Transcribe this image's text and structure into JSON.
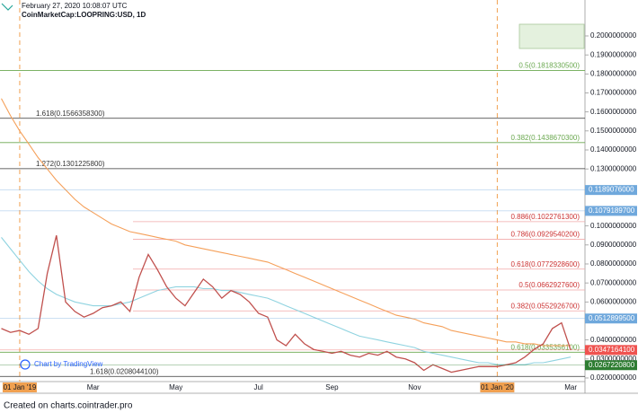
{
  "header": {
    "date": "February 27, 2020 10:08:07 UTC",
    "symbol": "CoinMarketCap:LOOPRING:USD, 1D"
  },
  "chart_data": {
    "type": "line",
    "categories": [
      null,
      null,
      "01 Jan '19",
      null,
      null,
      null,
      null,
      null,
      null,
      null,
      "Mar",
      null,
      null,
      null,
      null,
      null,
      null,
      null,
      null,
      "May",
      null,
      null,
      null,
      null,
      null,
      null,
      null,
      null,
      "Jul",
      null,
      null,
      null,
      null,
      null,
      null,
      null,
      "Sep",
      null,
      null,
      null,
      null,
      null,
      null,
      null,
      null,
      "Nov",
      null,
      null,
      null,
      null,
      null,
      null,
      null,
      null,
      "01 Jan '20",
      null,
      null,
      null,
      null,
      null,
      null,
      null,
      "Mar"
    ],
    "series": [
      {
        "color": "#c0504d",
        "values": [
          0.046,
          0.044,
          0.045,
          0.043,
          0.046,
          0.075,
          0.095,
          0.06,
          0.055,
          0.052,
          0.054,
          0.057,
          0.058,
          0.06,
          0.055,
          0.073,
          0.085,
          0.077,
          0.068,
          0.062,
          0.058,
          0.065,
          0.072,
          0.068,
          0.062,
          0.066,
          0.064,
          0.06,
          0.054,
          0.052,
          0.04,
          0.037,
          0.043,
          0.038,
          0.035,
          0.034,
          0.033,
          0.034,
          0.032,
          0.031,
          0.033,
          0.032,
          0.034,
          0.031,
          0.03,
          0.028,
          0.024,
          0.027,
          0.025,
          0.023,
          0.024,
          0.025,
          0.026,
          0.026,
          0.026,
          0.027,
          0.028,
          0.031,
          0.035,
          0.038,
          0.046,
          0.049,
          0.0347
        ]
      },
      {
        "color": "#f5a05a",
        "values": [
          0.167,
          0.158,
          0.15,
          0.143,
          0.136,
          0.13,
          0.124,
          0.119,
          0.114,
          0.11,
          0.107,
          0.104,
          0.101,
          0.099,
          0.097,
          0.096,
          0.095,
          0.094,
          0.093,
          0.092,
          0.09,
          0.089,
          0.088,
          0.087,
          0.086,
          0.085,
          0.084,
          0.083,
          0.082,
          0.081,
          0.079,
          0.077,
          0.075,
          0.073,
          0.071,
          0.069,
          0.067,
          0.065,
          0.063,
          0.061,
          0.059,
          0.057,
          0.055,
          0.053,
          0.052,
          0.051,
          0.049,
          0.048,
          0.047,
          0.045,
          0.044,
          0.043,
          0.042,
          0.041,
          0.04,
          0.039,
          0.039,
          0.038,
          0.038,
          0.037,
          0.037,
          0.037,
          0.037
        ]
      },
      {
        "color": "#8fd3e0",
        "values": [
          0.094,
          0.088,
          0.082,
          0.076,
          0.071,
          0.067,
          0.064,
          0.062,
          0.06,
          0.059,
          0.058,
          0.058,
          0.058,
          0.059,
          0.06,
          0.062,
          0.064,
          0.066,
          0.067,
          0.068,
          0.068,
          0.068,
          0.067,
          0.067,
          0.066,
          0.066,
          0.065,
          0.064,
          0.063,
          0.062,
          0.06,
          0.058,
          0.056,
          0.054,
          0.052,
          0.05,
          0.048,
          0.046,
          0.044,
          0.042,
          0.041,
          0.04,
          0.039,
          0.038,
          0.037,
          0.036,
          0.034,
          0.033,
          0.032,
          0.031,
          0.03,
          0.029,
          0.028,
          0.028,
          0.027,
          0.027,
          0.027,
          0.027,
          0.028,
          0.028,
          0.029,
          0.03,
          0.031
        ]
      }
    ],
    "ylim": [
      0.0181,
      0.2189
    ],
    "yticks": [
      {
        "value": 0.2,
        "label": "0.2000000000"
      },
      {
        "value": 0.19,
        "label": "0.1900000000"
      },
      {
        "value": 0.18,
        "label": "0.1800000000"
      },
      {
        "value": 0.17,
        "label": "0.1700000000"
      },
      {
        "value": 0.16,
        "label": "0.1600000000"
      },
      {
        "value": 0.15,
        "label": "0.1500000000"
      },
      {
        "value": 0.14,
        "label": "0.1400000000"
      },
      {
        "value": 0.13,
        "label": "0.1300000000"
      },
      {
        "value": 0.1,
        "label": "0.1000000000"
      },
      {
        "value": 0.09,
        "label": "0.0900000000"
      },
      {
        "value": 0.08,
        "label": "0.0800000000"
      },
      {
        "value": 0.07,
        "label": "0.0700000000"
      },
      {
        "value": 0.06,
        "label": "0.0600000000"
      },
      {
        "value": 0.04,
        "label": "0.0400000000"
      },
      {
        "value": 0.03,
        "label": "0.0300000000"
      },
      {
        "value": 0.02,
        "label": "0.0200000000"
      }
    ],
    "levels": [
      {
        "value": 0.18183305,
        "label": "0.5(0.1818330500)",
        "color": "#6aa84f"
      },
      {
        "value": 0.15663583,
        "label": "1.618(0.1566358300)",
        "color": "#333333"
      },
      {
        "value": 0.14386703,
        "label": "0.382(0.1438670300)",
        "color": "#6aa84f"
      },
      {
        "value": 0.13012258,
        "label": "1.272(0.1301225800)",
        "color": "#333333"
      },
      {
        "value": 0.10227613,
        "label": "0.886(0.1022761300)",
        "color": "#cc3333"
      },
      {
        "value": 0.09295402,
        "label": "0.786(0.0929540200)",
        "color": "#cc3333"
      },
      {
        "value": 0.07729286,
        "label": "0.618(0.0772928600)",
        "color": "#cc3333"
      },
      {
        "value": 0.06629276,
        "label": "0.5(0.0662927600)",
        "color": "#cc3333"
      },
      {
        "value": 0.05529267,
        "label": "0.382(0.0552926700)",
        "color": "#cc3333"
      },
      {
        "value": 0.03353561,
        "label": "0.618(0.0335356100)",
        "color": "#6aa84f"
      },
      {
        "value": 0.02080441,
        "label": "1.618(0.0208044100)",
        "color": "#333333"
      }
    ],
    "price_labels": [
      {
        "value": 0.1189076,
        "label": "0.1189076000",
        "color": "#6fa8dc"
      },
      {
        "value": 0.10791897,
        "label": "0.1079189700",
        "color": "#6fa8dc"
      },
      {
        "value": 0.05128995,
        "label": "0.0512899500",
        "color": "#6fa8dc"
      },
      {
        "value": 0.03471641,
        "label": "0.0347164100",
        "color": "#ef5350"
      },
      {
        "value": 0.02672208,
        "label": "0.0267220800",
        "color": "#2e7d32"
      }
    ],
    "watermark": "Chart by TradingView"
  },
  "footer": "Created on charts.cointrader.pro"
}
